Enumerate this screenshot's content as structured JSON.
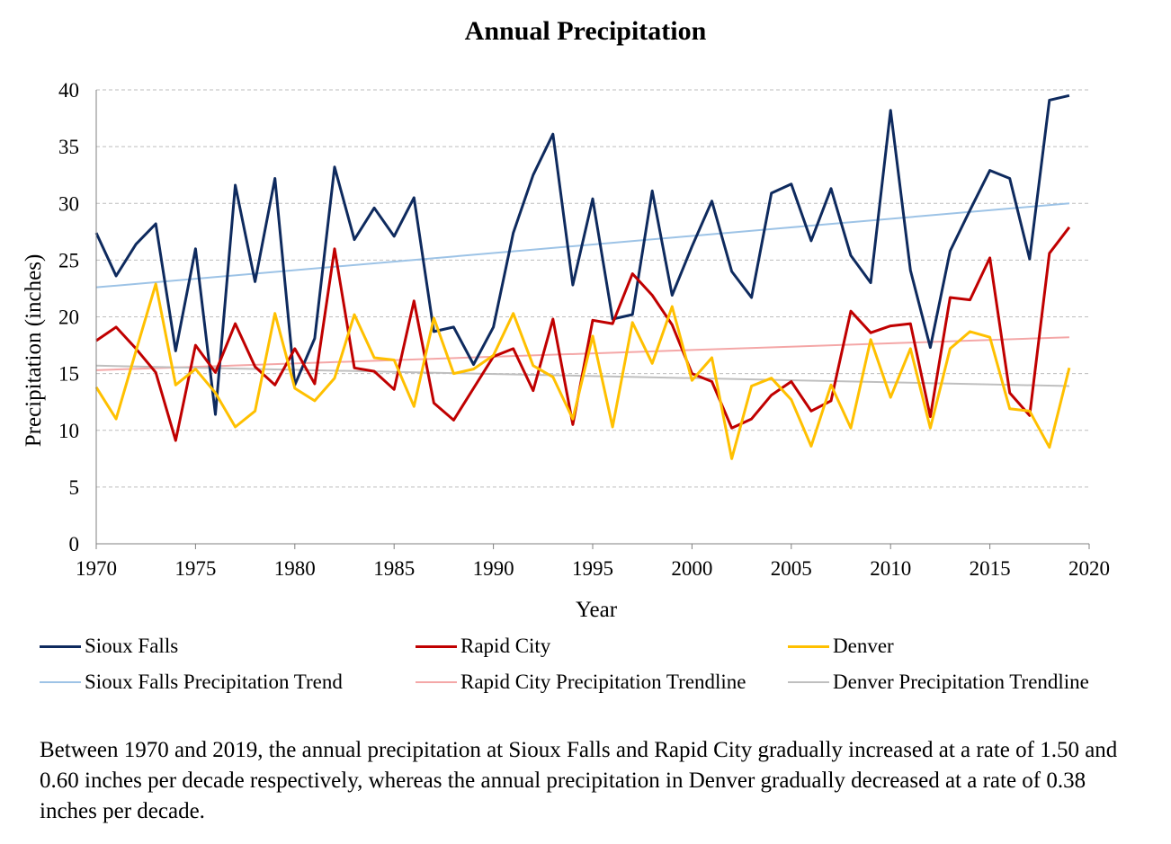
{
  "chart_data": {
    "type": "line",
    "title": "Annual Precipitation",
    "xlabel": "Year",
    "ylabel": "Precipitation (inches)",
    "xlim": [
      1970,
      2020
    ],
    "ylim": [
      0,
      40
    ],
    "x_ticks": [
      1970,
      1975,
      1980,
      1985,
      1990,
      1995,
      2000,
      2005,
      2010,
      2015,
      2020
    ],
    "y_ticks": [
      0,
      5,
      10,
      15,
      20,
      25,
      30,
      35,
      40
    ],
    "grid": "horizontal dashed",
    "legend_position": "bottom",
    "x": [
      1970,
      1971,
      1972,
      1973,
      1974,
      1975,
      1976,
      1977,
      1978,
      1979,
      1980,
      1981,
      1982,
      1983,
      1984,
      1985,
      1986,
      1987,
      1988,
      1989,
      1990,
      1991,
      1992,
      1993,
      1994,
      1995,
      1996,
      1997,
      1998,
      1999,
      2000,
      2001,
      2002,
      2003,
      2004,
      2005,
      2006,
      2007,
      2008,
      2009,
      2010,
      2011,
      2012,
      2013,
      2014,
      2015,
      2016,
      2017,
      2018,
      2019
    ],
    "series": [
      {
        "name": "Sioux Falls",
        "color": "#0e2a5e",
        "width": 3,
        "values": [
          27.4,
          23.6,
          26.4,
          28.2,
          17.0,
          26.0,
          11.4,
          31.6,
          23.1,
          32.2,
          14.0,
          18.1,
          33.2,
          26.8,
          29.6,
          27.1,
          30.5,
          18.7,
          19.1,
          15.8,
          19.1,
          27.4,
          32.5,
          36.1,
          22.8,
          30.4,
          19.8,
          20.2,
          31.1,
          21.9,
          26.2,
          30.2,
          24.0,
          21.7,
          30.9,
          31.7,
          26.7,
          31.3,
          25.4,
          23.0,
          38.2,
          24.1,
          17.3,
          25.8,
          29.4,
          32.9,
          32.2,
          25.1,
          39.1,
          39.5
        ]
      },
      {
        "name": "Rapid City",
        "color": "#c00000",
        "width": 3,
        "values": [
          17.9,
          19.1,
          17.2,
          15.1,
          9.1,
          17.5,
          15.1,
          19.4,
          15.6,
          14.0,
          17.2,
          14.1,
          26.0,
          15.5,
          15.2,
          13.6,
          21.4,
          12.4,
          10.9,
          13.7,
          16.5,
          17.2,
          13.5,
          19.8,
          10.5,
          19.7,
          19.4,
          23.8,
          21.9,
          19.3,
          15.0,
          14.3,
          10.2,
          11.0,
          13.1,
          14.3,
          11.7,
          12.6,
          20.5,
          18.6,
          19.2,
          19.4,
          11.2,
          21.7,
          21.5,
          25.2,
          13.3,
          11.3,
          25.6,
          27.9
        ]
      },
      {
        "name": "Denver",
        "color": "#ffc000",
        "width": 3,
        "values": [
          13.8,
          11.0,
          17.0,
          22.9,
          14.0,
          15.4,
          13.3,
          10.3,
          11.7,
          20.3,
          13.7,
          12.6,
          14.6,
          20.2,
          16.4,
          16.2,
          12.1,
          19.9,
          15.0,
          15.4,
          16.6,
          20.3,
          15.7,
          14.7,
          11.0,
          18.3,
          10.3,
          19.5,
          15.9,
          20.9,
          14.4,
          16.4,
          7.5,
          13.9,
          14.6,
          12.7,
          8.6,
          14.0,
          10.2,
          18.0,
          12.9,
          17.2,
          10.2,
          17.2,
          18.7,
          18.2,
          11.9,
          11.7,
          8.5,
          15.5
        ]
      },
      {
        "name": "Sioux Falls Precipitation Trend",
        "color": "#9dc3e6",
        "width": 2,
        "trend": true,
        "values_at_ends": [
          22.6,
          30.0
        ]
      },
      {
        "name": "Rapid City Precipitation Trendline",
        "color": "#f4a7a7",
        "width": 2,
        "trend": true,
        "values_at_ends": [
          15.3,
          18.2
        ]
      },
      {
        "name": "Denver Precipitation Trendline",
        "color": "#bfbfbf",
        "width": 2,
        "trend": true,
        "values_at_ends": [
          15.7,
          13.9
        ]
      }
    ]
  },
  "caption": "Between 1970 and 2019, the annual precipitation at Sioux Falls and Rapid City gradually increased at a rate of 1.50 and 0.60 inches per decade respectively, whereas the annual precipitation in Denver gradually decreased at a rate of 0.38 inches per decade."
}
